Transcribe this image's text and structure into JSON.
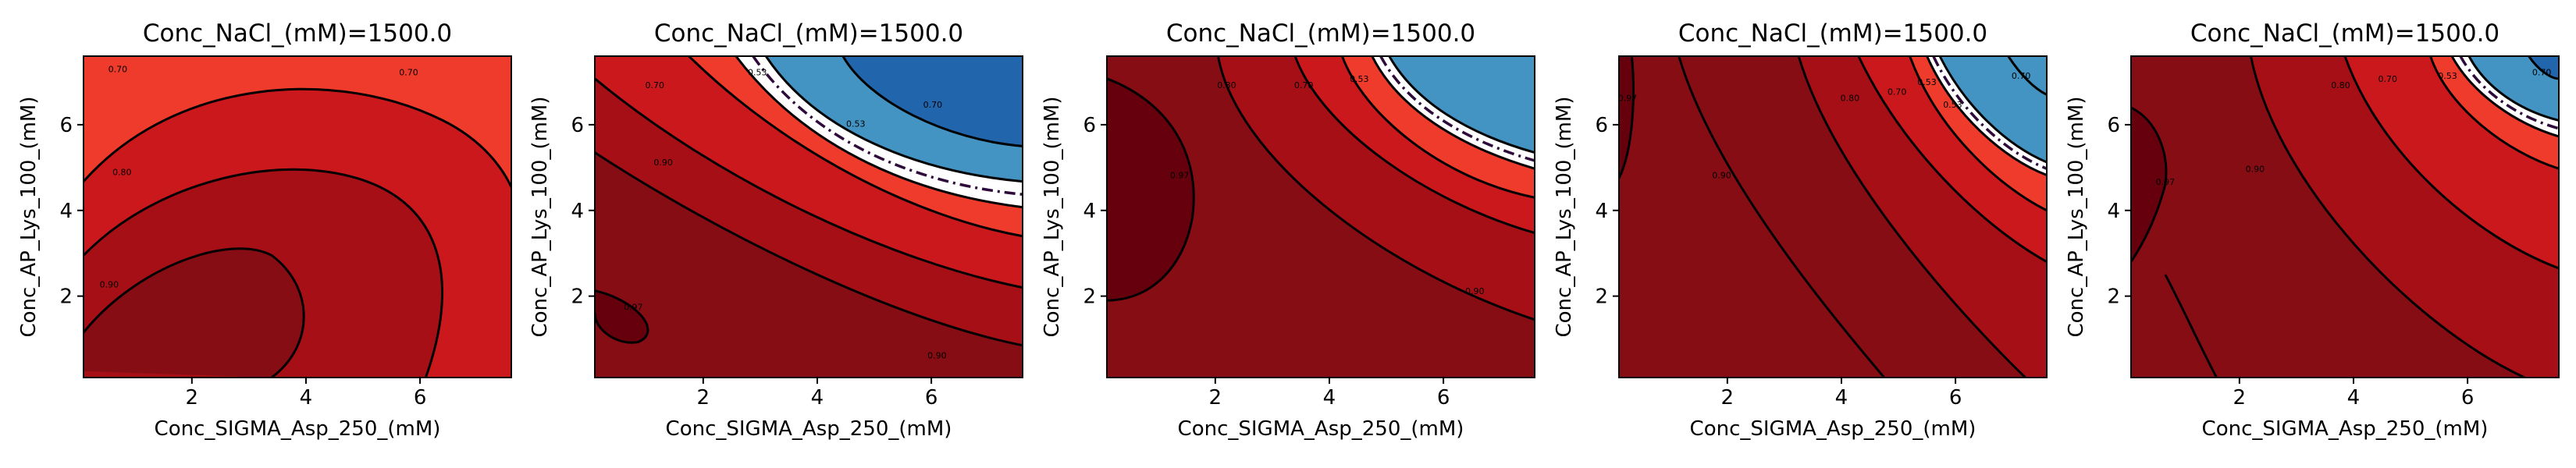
{
  "chart_data": [
    {
      "type": "contour",
      "title": "Conc_NaCl_(mM)=1500.0",
      "xlabel": "Conc_SIGMA_Asp_250_(mM)",
      "ylabel": "Conc_AP_Lys_100_(mM)",
      "xticks": [
        2,
        4,
        6
      ],
      "yticks": [
        2,
        4,
        6
      ],
      "xlim": [
        0.1,
        7.6
      ],
      "ylim": [
        0.1,
        7.6
      ],
      "contour_labels": [
        "0.70",
        "0.70",
        "0.80",
        "0.90"
      ]
    },
    {
      "type": "contour",
      "title": "Conc_NaCl_(mM)=1500.0",
      "xlabel": "Conc_SIGMA_Asp_250_(mM)",
      "ylabel": "Conc_AP_Lys_100_(mM)",
      "xticks": [
        2,
        4,
        6
      ],
      "yticks": [
        2,
        4,
        6
      ],
      "xlim": [
        0.1,
        7.6
      ],
      "ylim": [
        0.1,
        7.6
      ],
      "contour_labels": [
        "0.70",
        "0.53",
        "0.90",
        "0.53",
        "0.70",
        "0.97",
        "0.90"
      ]
    },
    {
      "type": "contour",
      "title": "Conc_NaCl_(mM)=1500.0",
      "xlabel": "Conc_SIGMA_Asp_250_(mM)",
      "ylabel": "Conc_AP_Lys_100_(mM)",
      "xticks": [
        2,
        4,
        6
      ],
      "yticks": [
        2,
        4,
        6
      ],
      "xlim": [
        0.1,
        7.6
      ],
      "ylim": [
        0.1,
        7.6
      ],
      "contour_labels": [
        "0.97",
        "0.80",
        "0.70",
        "0.53",
        "0.90"
      ]
    },
    {
      "type": "contour",
      "title": "Conc_NaCl_(mM)=1500.0",
      "xlabel": "Conc_SIGMA_Asp_250_(mM)",
      "ylabel": "Conc_AP_Lys_100_(mM)",
      "xticks": [
        2,
        4,
        6
      ],
      "yticks": [
        2,
        4,
        6
      ],
      "xlim": [
        0.1,
        7.6
      ],
      "ylim": [
        0.1,
        7.6
      ],
      "contour_labels": [
        "0.97",
        "0.90",
        "0.80",
        "0.70",
        "0.53",
        "0.53",
        "0.70"
      ]
    },
    {
      "type": "contour",
      "title": "Conc_NaCl_(mM)=1500.0",
      "xlabel": "Conc_SIGMA_Asp_250_(mM)",
      "ylabel": "Conc_AP_Lys_100_(mM)",
      "xticks": [
        2,
        4,
        6
      ],
      "yticks": [
        2,
        4,
        6
      ],
      "xlim": [
        0.1,
        7.6
      ],
      "ylim": [
        0.1,
        7.6
      ],
      "contour_labels": [
        "0.97",
        "0.90",
        "0.80",
        "0.70",
        "0.53",
        "0.70"
      ]
    }
  ]
}
